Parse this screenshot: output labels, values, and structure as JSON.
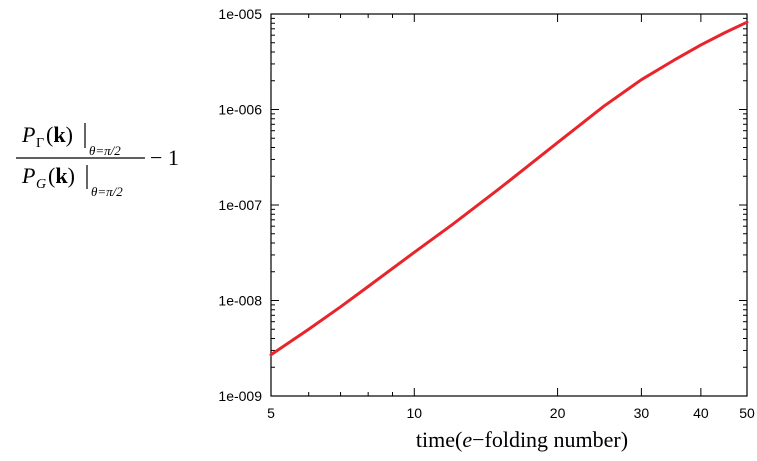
{
  "chart_data": {
    "type": "line",
    "xscale": "log",
    "yscale": "log",
    "xlim": [
      5,
      50
    ],
    "ylim": [
      1e-09,
      1e-05
    ],
    "xticks": [
      5,
      10,
      20,
      30,
      40,
      50
    ],
    "xtick_labels": [
      "5",
      "10",
      "20",
      "30",
      "40",
      "50"
    ],
    "yticks": [
      1e-09,
      1e-08,
      1e-07,
      1e-06,
      1e-05
    ],
    "ytick_labels": [
      "1e-009",
      "1e-008",
      "1e-007",
      "1e-006",
      "1e-005"
    ],
    "xlabel": "time(e−folding number)",
    "ylabel": "PΓ(k)|θ=π/2 / PG(k)|θ=π/2 − 1",
    "grid": false,
    "series": [
      {
        "color": "#e8252a",
        "x": [
          5,
          6,
          7,
          8,
          10,
          12,
          15,
          20,
          25,
          30,
          35,
          40,
          45,
          50
        ],
        "y": [
          2.7e-09,
          5e-09,
          8.6e-09,
          1.4e-08,
          3.2e-08,
          6.2e-08,
          1.45e-07,
          4.5e-07,
          1.08e-06,
          2.05e-06,
          3.25e-06,
          4.75e-06,
          6.4e-06,
          8.2e-06
        ]
      }
    ]
  }
}
